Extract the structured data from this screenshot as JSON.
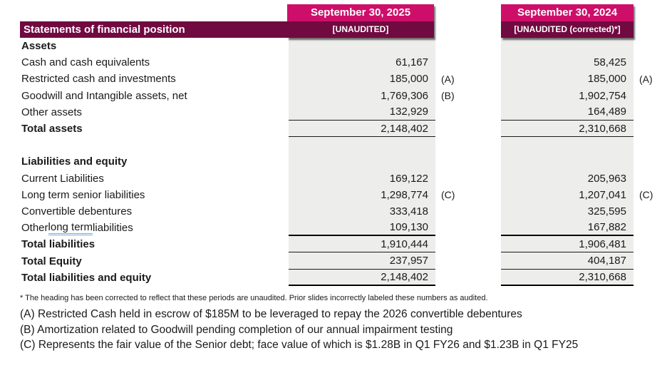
{
  "header": {
    "title": "Statements of financial position",
    "col2025": {
      "date": "September 30, 2025",
      "status": "[UNAUDITED]"
    },
    "col2024": {
      "date": "September 30, 2024",
      "status": "[UNAUDITED (corrected)*]"
    }
  },
  "table": {
    "column_headers": [
      "September 30, 2025 [UNAUDITED]",
      "September 30, 2024 [UNAUDITED (corrected)*]"
    ],
    "rows": [
      {
        "label": "Assets",
        "bold": true
      },
      {
        "label": "Cash and cash equivalents",
        "v2025": "61,167",
        "v2024": "58,425"
      },
      {
        "label": "Restricted cash and investments",
        "v2025": "185,000",
        "note2025": "(A)",
        "v2024": "185,000",
        "note2024": "(A)"
      },
      {
        "label": "Goodwill and Intangible assets, net",
        "v2025": "1,769,306",
        "note2025": "(B)",
        "v2024": "1,902,754"
      },
      {
        "label": "Other assets",
        "v2025": "132,929",
        "v2024": "164,489",
        "rule": "thin"
      },
      {
        "label": "Total assets",
        "bold": true,
        "v2025": "2,148,402",
        "v2024": "2,310,668",
        "rule": "thin"
      },
      {
        "spacer": true
      },
      {
        "label": "Liabilities and equity",
        "bold": true
      },
      {
        "label": "Current Liabilities",
        "v2025": "169,122",
        "v2024": "205,963"
      },
      {
        "label": "Long term senior liabilities",
        "v2025": "1,298,774",
        "note2025": "(C)",
        "v2024": "1,207,041",
        "note2024": "(C)"
      },
      {
        "label": "Convertible debentures",
        "v2025": "333,418",
        "v2024": "325,595"
      },
      {
        "label": "Other long term liabilities",
        "grammar_underline": "long term",
        "v2025": "109,130",
        "v2024": "167,882",
        "rule": "thick"
      },
      {
        "label": "Total liabilities",
        "bold": true,
        "v2025": "1,910,444",
        "v2024": "1,906,481",
        "rule": "thin"
      },
      {
        "label": "Total Equity",
        "bold": true,
        "v2025": "237,957",
        "v2024": "404,187",
        "rule": "thin"
      },
      {
        "label": "Total liabilities and equity",
        "bold": true,
        "v2025": "2,148,402",
        "v2024": "2,310,668",
        "rule": "thick"
      }
    ]
  },
  "footnotes": {
    "correction": "* The heading has been corrected to reflect that these periods are unaudited. Prior slides incorrectly labeled these numbers as audited.",
    "a": "(A) Restricted Cash held in escrow of $185M to be leveraged to repay the 2026 convertible debentures",
    "b": "(B) Amortization related to Goodwill pending completion of our annual impairment testing",
    "c": "(C) Represents the fair value of the Senior debt; face value of which is $1.28B in Q1 FY26 and $1.23B in Q1 FY25"
  },
  "colors": {
    "accent_pink": "#CE0F69",
    "accent_maroon": "#700A40",
    "column_gray": "#EDEDEB",
    "grammar_underline_blue": "#7FA8DC"
  }
}
